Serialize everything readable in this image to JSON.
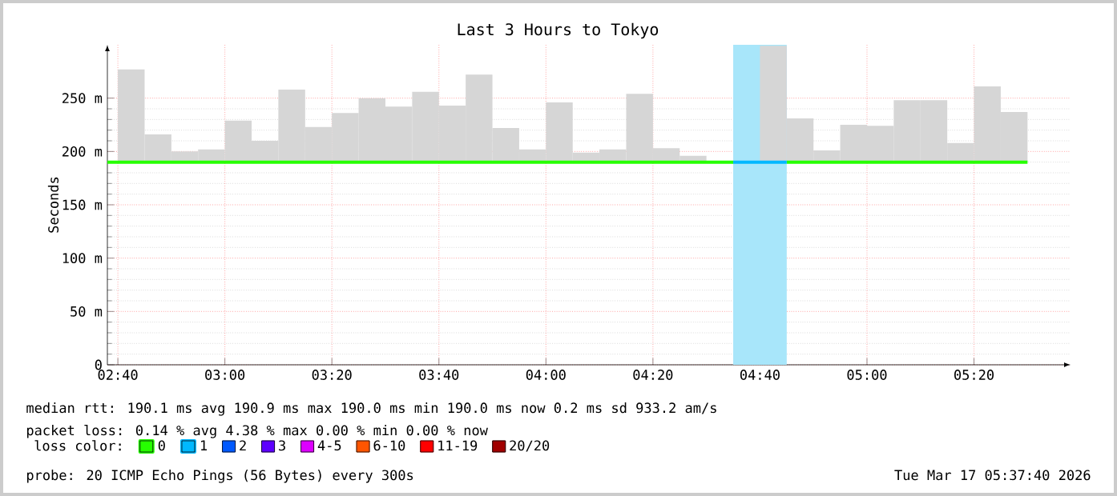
{
  "chart_data": {
    "type": "bar",
    "title": "Last 3 Hours to Tokyo",
    "ylabel": "Seconds",
    "legend_title": "loss color:",
    "legend": "bottom",
    "grid": true,
    "xlim": [
      2.634,
      5.634
    ],
    "xticks": [
      {
        "value": 2.6667,
        "label": "02:40"
      },
      {
        "value": 3,
        "label": "03:00"
      },
      {
        "value": 3.3333,
        "label": "03:20"
      },
      {
        "value": 3.6667,
        "label": "03:40"
      },
      {
        "value": 4,
        "label": "04:00"
      },
      {
        "value": 4.3333,
        "label": "04:20"
      },
      {
        "value": 4.6667,
        "label": "04:40"
      },
      {
        "value": 5,
        "label": "05:00"
      },
      {
        "value": 5.3333,
        "label": "05:20"
      }
    ],
    "ylim": [
      0,
      300
    ],
    "yticks": [
      0,
      {
        "value": 50,
        "label": "50 m"
      },
      {
        "value": 100,
        "label": "100 m"
      },
      {
        "value": 150,
        "label": "150 m"
      },
      {
        "value": 200,
        "label": "200 m"
      },
      {
        "value": 250,
        "label": "250 m"
      }
    ],
    "bands": [
      {
        "axis": "x",
        "from": 4.5833,
        "to": 4.75,
        "color": "#a8e6fa"
      }
    ],
    "series": [
      {
        "color": "#d6d6d6",
        "x": [
          2.7083,
          2.7917,
          2.875,
          2.9583,
          3.0417,
          3.125,
          3.2083,
          3.2917,
          3.375,
          3.4583,
          3.5417,
          3.625,
          3.7083,
          3.7917,
          3.875,
          3.9583,
          4.0417,
          4.125,
          4.2083,
          4.2917,
          4.375,
          4.4583,
          4.5417,
          4.625,
          4.7083,
          4.7917,
          4.875,
          4.9583,
          5.0417,
          5.125,
          5.2083,
          5.2917,
          5.375,
          5.4583
        ],
        "base": [
          190,
          190,
          190,
          190,
          190,
          190,
          190,
          190,
          190,
          190,
          190,
          190,
          190,
          190,
          190,
          190,
          190,
          190,
          190,
          190,
          190,
          190,
          null,
          null,
          190,
          190,
          190,
          190,
          190,
          190,
          190,
          190,
          190,
          190
        ],
        "values": [
          87,
          26,
          10,
          12,
          39,
          20,
          68,
          33,
          46,
          60,
          52,
          66,
          53,
          82,
          32,
          12,
          56,
          9,
          12,
          64,
          13,
          6,
          null,
          null,
          109,
          41,
          11,
          35,
          34,
          58,
          58,
          18,
          71,
          47
        ]
      },
      {
        "type": "line",
        "name": "0",
        "color": "#26ff00",
        "x": [
          2.634,
          4.5833,
          4.6667,
          4.75,
          5.5
        ],
        "values": [
          190,
          190,
          null,
          190,
          190
        ]
      },
      {
        "type": "line",
        "name": "1",
        "color": "#00b8ff",
        "x": [
          4.5833,
          4.75
        ],
        "values": [
          190,
          190
        ]
      },
      {
        "type": "line",
        "name": "2",
        "color": "#0059ff"
      },
      {
        "type": "line",
        "name": "3",
        "color": "#5e00ff"
      },
      {
        "type": "line",
        "name": "4-5",
        "color": "#dd00ff"
      },
      {
        "type": "line",
        "name": "6-10",
        "color": "#ff5500"
      },
      {
        "type": "line",
        "name": "11-19",
        "color": "#ff0000"
      },
      {
        "type": "line",
        "name": "20/20",
        "color": "#a10000"
      }
    ],
    "annotations": [
      "median rtt: 190.1 ms avg 190.9 ms max 190.0 ms min 190.0 ms now 0.2 ms sd 933.2 am/s",
      "packet loss: 0.14 % avg 4.38 % max 0.00 % min 0.00 % now",
      "probe: 20 ICMP Echo Pings (56 Bytes) every 300s",
      "Tue Mar 17 05:37:40 2026"
    ]
  }
}
